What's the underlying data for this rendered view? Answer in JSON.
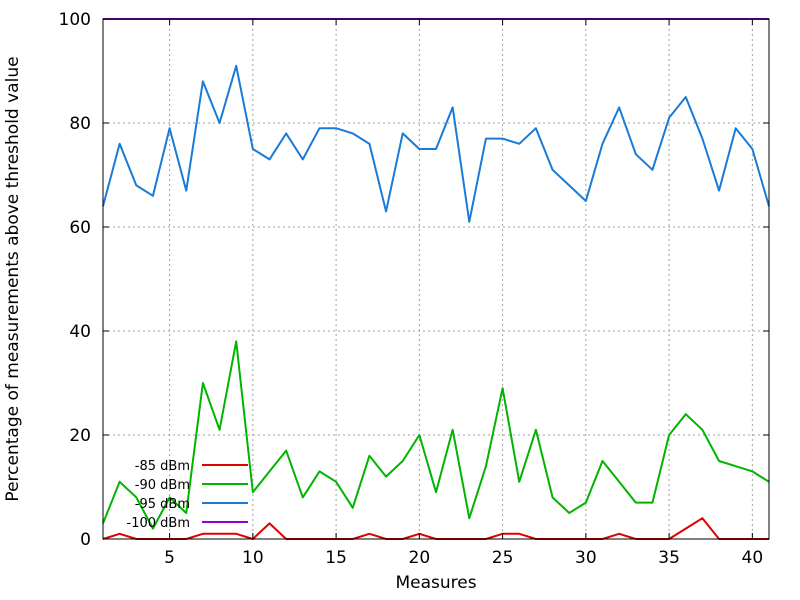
{
  "chart_data": {
    "type": "line",
    "title": "",
    "xlabel": "Measures",
    "ylabel": "Percentage of measurements above threshold value",
    "xlim": [
      1,
      41
    ],
    "ylim": [
      0,
      100
    ],
    "x_ticks": [
      5,
      10,
      15,
      20,
      25,
      30,
      35,
      40
    ],
    "y_ticks": [
      0,
      20,
      40,
      60,
      80,
      100
    ],
    "grid": true,
    "legend_position": "bottom-left",
    "x": [
      1,
      2,
      3,
      4,
      5,
      6,
      7,
      8,
      9,
      10,
      11,
      12,
      13,
      14,
      15,
      16,
      17,
      18,
      19,
      20,
      21,
      22,
      23,
      24,
      25,
      26,
      27,
      28,
      29,
      30,
      31,
      32,
      33,
      34,
      35,
      36,
      37,
      38,
      39,
      40,
      41
    ],
    "series": [
      {
        "name": "-85 dBm",
        "color": "#e00000",
        "values": [
          0,
          1,
          0,
          0,
          0,
          0,
          1,
          1,
          1,
          0,
          3,
          0,
          0,
          0,
          0,
          0,
          1,
          0,
          0,
          1,
          0,
          0,
          0,
          0,
          1,
          1,
          0,
          0,
          0,
          0,
          0,
          1,
          0,
          0,
          0,
          2,
          4,
          0,
          0,
          0,
          0
        ]
      },
      {
        "name": "-90 dBm",
        "color": "#00b400",
        "values": [
          3,
          11,
          8,
          2,
          8,
          5,
          30,
          21,
          38,
          9,
          13,
          17,
          8,
          13,
          11,
          6,
          16,
          12,
          15,
          20,
          9,
          21,
          4,
          14,
          29,
          11,
          21,
          8,
          5,
          7,
          15,
          11,
          7,
          7,
          20,
          24,
          21,
          15,
          14,
          13,
          11
        ]
      },
      {
        "name": "-95 dBm",
        "color": "#1a7ad8",
        "values": [
          64,
          76,
          68,
          66,
          79,
          67,
          88,
          80,
          91,
          75,
          73,
          78,
          73,
          79,
          79,
          78,
          76,
          63,
          78,
          75,
          75,
          83,
          61,
          77,
          77,
          76,
          79,
          71,
          68,
          65,
          76,
          83,
          74,
          71,
          81,
          85,
          77,
          67,
          79,
          75,
          64
        ]
      },
      {
        "name": "-100 dBm",
        "color": "#9400d3",
        "values": [
          100,
          100,
          100,
          100,
          100,
          100,
          100,
          100,
          100,
          100,
          100,
          100,
          100,
          100,
          100,
          100,
          100,
          100,
          100,
          100,
          100,
          100,
          100,
          100,
          100,
          100,
          100,
          100,
          100,
          100,
          100,
          100,
          100,
          100,
          100,
          100,
          100,
          100,
          100,
          100,
          100
        ]
      }
    ]
  }
}
